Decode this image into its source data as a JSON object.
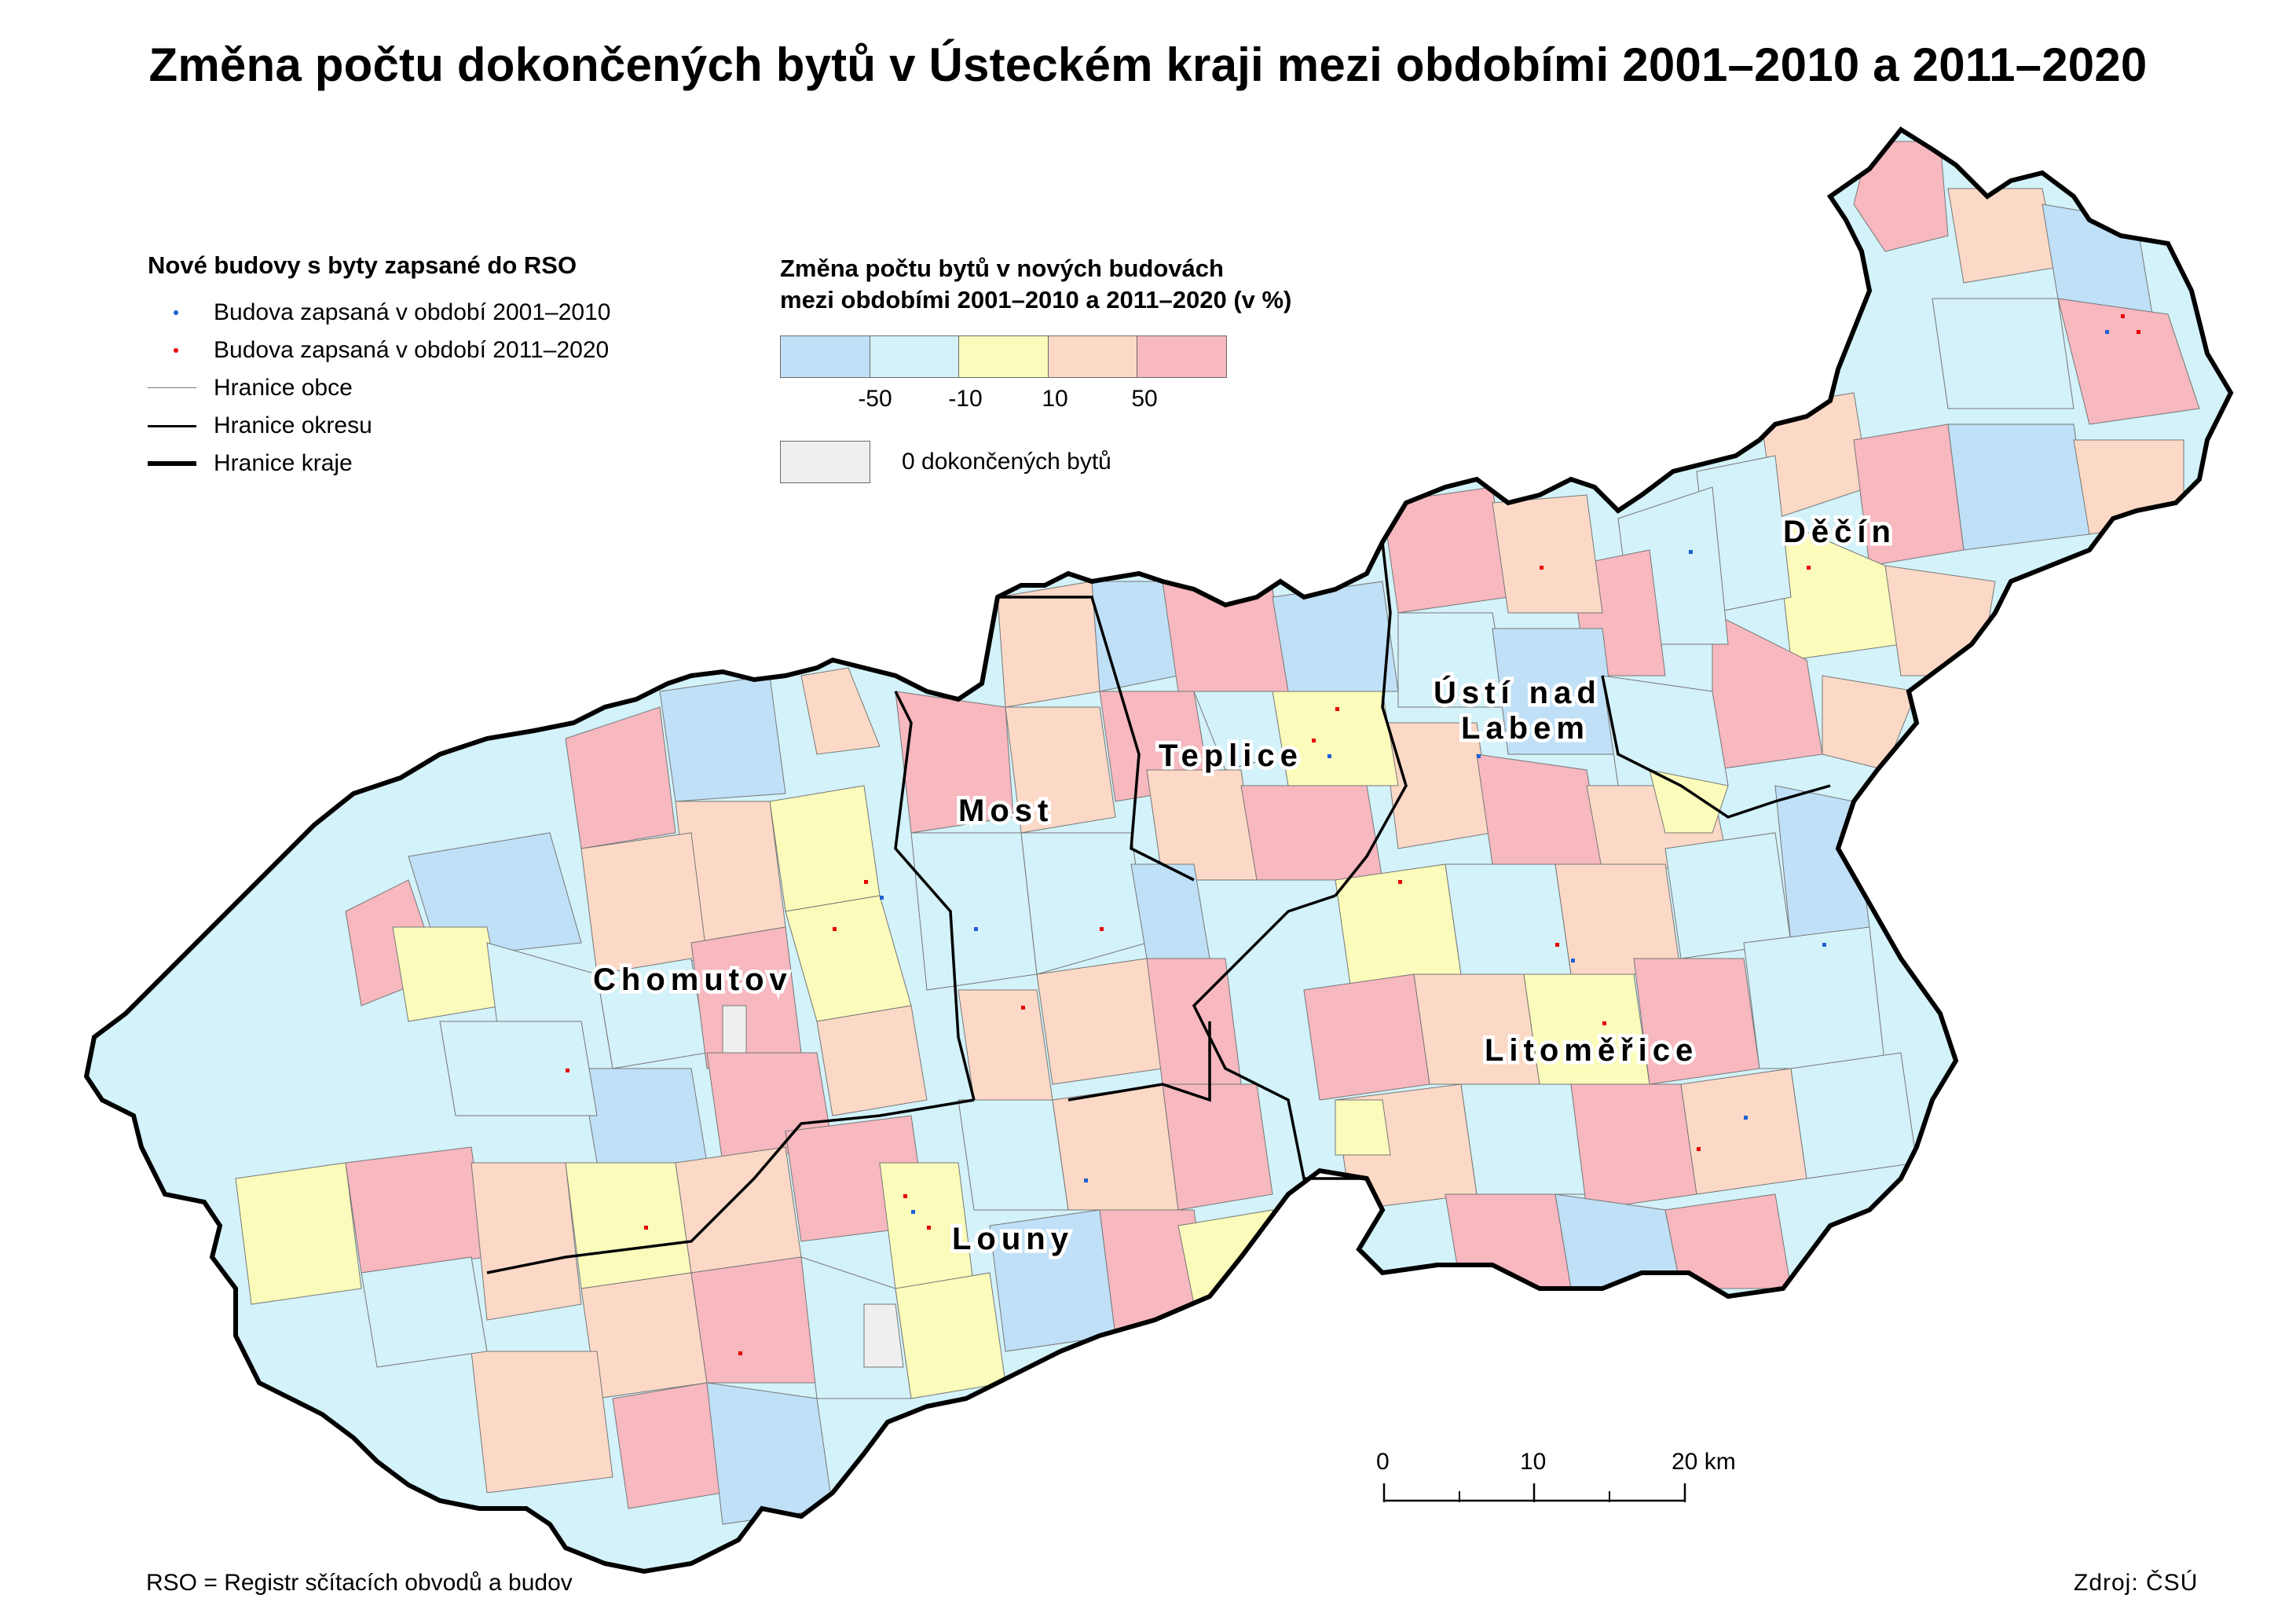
{
  "title": "Změna počtu dokončených bytů v Ústeckém kraji mezi obdobími 2001–2010 a 2011–2020",
  "legend_buildings": {
    "heading": "Nové budovy s byty zapsané do RSO",
    "items": [
      {
        "label": "Budova zapsaná v období 2001–2010",
        "color": "#1f5fd6"
      },
      {
        "label": "Budova zapsaná v období 2011–2020",
        "color": "#e60000"
      },
      {
        "label": "Hranice obce"
      },
      {
        "label": "Hranice okresu"
      },
      {
        "label": "Hranice kraje"
      }
    ]
  },
  "legend_change": {
    "heading_line1": "Změna počtu bytů v nových budovách",
    "heading_line2": "mezi obdobími 2001–2010 a 2011–2020 (v %)",
    "classes": [
      {
        "color": "#bfe0f7"
      },
      {
        "color": "#d3f2f9"
      },
      {
        "color": "#fbfbbb"
      },
      {
        "color": "#fcd9c6"
      },
      {
        "color": "#f7b8bf"
      }
    ],
    "breaks": [
      "-50",
      "-10",
      "10",
      "50"
    ],
    "no_data_label": "0 dokončených bytů",
    "no_data_color": "#efefef"
  },
  "districts": [
    {
      "name": "Děčín"
    },
    {
      "name": "Ústí nad"
    },
    {
      "name": "Labem"
    },
    {
      "name": "Teplice"
    },
    {
      "name": "Most"
    },
    {
      "name": "Chomutov"
    },
    {
      "name": "Litoměřice"
    },
    {
      "name": "Louny"
    }
  ],
  "scalebar": {
    "ticks": [
      "0",
      "10",
      "20 km"
    ]
  },
  "footer": {
    "note": "RSO = Registr sčítacích obvodů a budov",
    "source": "Zdroj: ČSÚ"
  }
}
